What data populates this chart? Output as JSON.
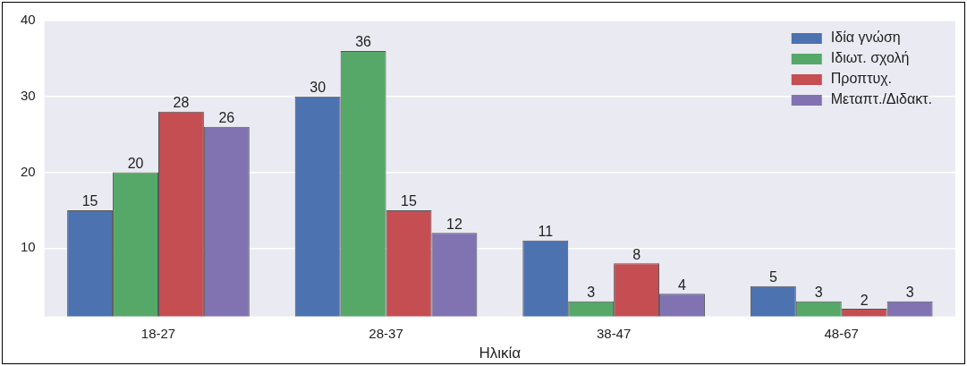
{
  "chart_data": {
    "type": "bar",
    "xlabel": "Ηλικία",
    "categories": [
      "18-27",
      "28-37",
      "38-47",
      "48-67"
    ],
    "series": [
      {
        "name": "Ιδία γνώση",
        "color": "#4c72b0",
        "values": [
          15,
          30,
          11,
          5
        ]
      },
      {
        "name": "Ιδιωτ. σχολή",
        "color": "#55a868",
        "values": [
          20,
          36,
          3,
          3
        ]
      },
      {
        "name": "Προπτυχ.",
        "color": "#c44e52",
        "values": [
          28,
          15,
          8,
          2
        ]
      },
      {
        "name": "Μεταπτ./Διδακτ.",
        "color": "#8172b2",
        "values": [
          26,
          12,
          4,
          3
        ]
      }
    ],
    "ylim": [
      1,
      40
    ],
    "yticks": [
      10,
      20,
      30,
      40
    ],
    "grid": "y",
    "legend": "top right",
    "data_labels": true
  }
}
